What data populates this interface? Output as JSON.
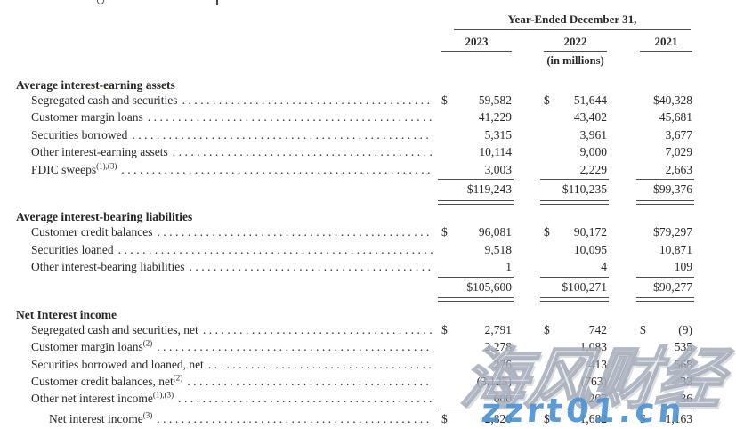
{
  "page": {
    "background": "#ffffff",
    "text_color": "#2b2824",
    "rule_color": "#4e4e4e"
  },
  "header": {
    "period_title": "Year-Ended December 31,",
    "years": [
      "2023",
      "2022",
      "2021"
    ],
    "units_note": "(in millions)"
  },
  "sections": [
    {
      "title": "Average interest-earning assets",
      "rows": [
        {
          "label": "Segregated cash and securities",
          "sup": "",
          "cells": [
            {
              "cur": "$",
              "val": "59,582"
            },
            {
              "cur": "$",
              "val": "51,644"
            },
            {
              "cur": "",
              "val": "$40,328"
            }
          ]
        },
        {
          "label": "Customer margin loans",
          "sup": "",
          "cells": [
            {
              "cur": "",
              "val": "41,229"
            },
            {
              "cur": "",
              "val": "43,402"
            },
            {
              "cur": "",
              "val": "45,681"
            }
          ]
        },
        {
          "label": "Securities borrowed",
          "sup": "",
          "cells": [
            {
              "cur": "",
              "val": "5,315"
            },
            {
              "cur": "",
              "val": "3,961"
            },
            {
              "cur": "",
              "val": "3,677"
            }
          ]
        },
        {
          "label": "Other interest-earning assets",
          "sup": "",
          "cells": [
            {
              "cur": "",
              "val": "10,114"
            },
            {
              "cur": "",
              "val": "9,000"
            },
            {
              "cur": "",
              "val": "7,029"
            }
          ]
        },
        {
          "label": "FDIC sweeps",
          "sup": "(1),(3)",
          "cells": [
            {
              "cur": "",
              "val": "3,003"
            },
            {
              "cur": "",
              "val": "2,229"
            },
            {
              "cur": "",
              "val": "2,663"
            }
          ]
        }
      ],
      "total": {
        "label": "",
        "sup": "",
        "cells": [
          {
            "cur": "",
            "val": "$119,243"
          },
          {
            "cur": "",
            "val": "$110,235"
          },
          {
            "cur": "",
            "val": "$99,376"
          }
        ]
      }
    },
    {
      "title": "Average interest-bearing liabilities",
      "rows": [
        {
          "label": "Customer credit balances",
          "sup": "",
          "cells": [
            {
              "cur": "$",
              "val": "96,081"
            },
            {
              "cur": "$",
              "val": "90,172"
            },
            {
              "cur": "",
              "val": "$79,297"
            }
          ]
        },
        {
          "label": "Securities loaned",
          "sup": "",
          "cells": [
            {
              "cur": "",
              "val": "9,518"
            },
            {
              "cur": "",
              "val": "10,095"
            },
            {
              "cur": "",
              "val": "10,871"
            }
          ]
        },
        {
          "label": "Other interest-bearing liabilities",
          "sup": "",
          "cells": [
            {
              "cur": "",
              "val": "1"
            },
            {
              "cur": "",
              "val": "4"
            },
            {
              "cur": "",
              "val": "109"
            }
          ]
        }
      ],
      "total": {
        "label": "",
        "sup": "",
        "cells": [
          {
            "cur": "",
            "val": "$105,600"
          },
          {
            "cur": "",
            "val": "$100,271"
          },
          {
            "cur": "",
            "val": "$90,277"
          }
        ]
      }
    },
    {
      "title": "Net Interest income",
      "rows": [
        {
          "label": "Segregated cash and securities, net",
          "sup": "",
          "cells": [
            {
              "cur": "$",
              "val": "2,791"
            },
            {
              "cur": "$",
              "val": "742"
            },
            {
              "cur": "$",
              "val": "(9)"
            }
          ]
        },
        {
          "label": "Customer margin loans",
          "sup": "(2)",
          "cells": [
            {
              "cur": "",
              "val": "2,278"
            },
            {
              "cur": "",
              "val": "1,083"
            },
            {
              "cur": "",
              "val": "535"
            }
          ]
        },
        {
          "label": "Securities borrowed and loaned, net",
          "sup": "",
          "cells": [
            {
              "cur": "",
              "val": "276"
            },
            {
              "cur": "",
              "val": "413"
            },
            {
              "cur": "",
              "val": "568"
            }
          ]
        },
        {
          "label": "Customer credit balances, net",
          "sup": "(2)",
          "cells": [
            {
              "cur": "",
              "val": "(3,125)"
            },
            {
              "cur": "",
              "val": "(763)"
            },
            {
              "cur": "",
              "val": "33"
            }
          ]
        },
        {
          "label": "Other net interest income",
          "sup": "(1),(3)",
          "cells": [
            {
              "cur": "",
              "val": "600"
            },
            {
              "cur": "",
              "val": "207"
            },
            {
              "cur": "",
              "val": "36"
            }
          ]
        }
      ],
      "total": {
        "label": "Net interest income",
        "sup": "(3)",
        "cells": [
          {
            "cur": "$",
            "val": "2,820"
          },
          {
            "cur": "$",
            "val": "1,682"
          },
          {
            "cur": "$",
            "val": "1,163"
          }
        ]
      }
    }
  ],
  "watermark": {
    "cn_text": "海风财经",
    "site_text": "zzrt01.cn",
    "blue": "#4f93d2",
    "outline_gray": "#98a2b0"
  }
}
